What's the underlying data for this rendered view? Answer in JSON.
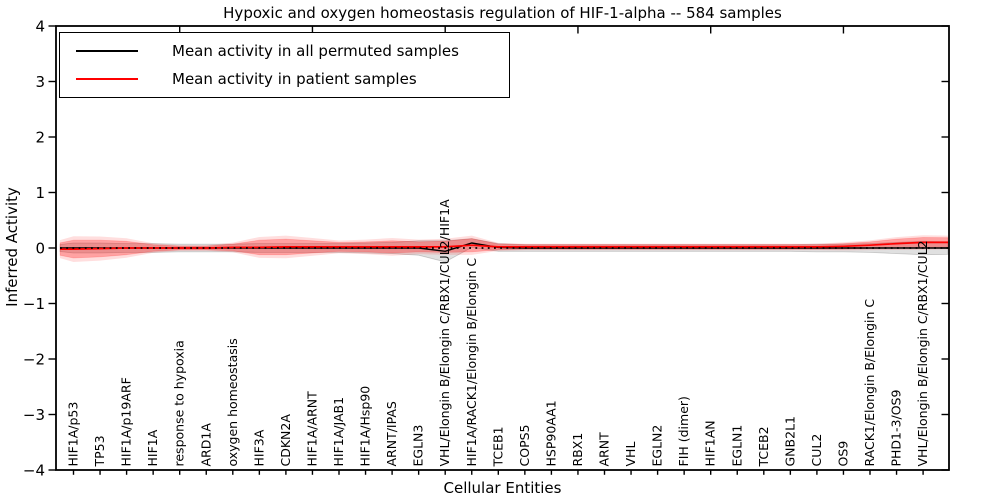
{
  "figure": {
    "title": "Hypoxic and oxygen homeostasis regulation of HIF-1-alpha -- 584 samples",
    "xlabel": "Cellular Entities",
    "ylabel": "Inferred Activity",
    "legend": [
      {
        "label": "Mean activity in all permuted samples",
        "color": "#000000"
      },
      {
        "label": "Mean activity in patient samples",
        "color": "#ff0000"
      }
    ]
  },
  "chart_data": {
    "type": "line",
    "title": "Hypoxic and oxygen homeostasis regulation of HIF-1-alpha -- 584 samples",
    "xlabel": "Cellular Entities",
    "ylabel": "Inferred Activity",
    "ylim": [
      -4,
      4
    ],
    "yticklabels": [
      "4",
      "3",
      "2",
      "1",
      "0",
      "−1",
      "−2",
      "−3",
      "−4"
    ],
    "yticks": [
      4,
      3,
      2,
      1,
      0,
      -1,
      -2,
      -3,
      -4
    ],
    "grid": false,
    "legend_position": "upper left",
    "zero_reference_line": {
      "y": 0,
      "style": "dotted",
      "color": "#000000"
    },
    "colors": {
      "permuted": "#000000",
      "patient": "#ff0000",
      "patient_band": "rgba(255,0,0,0.27)",
      "permuted_band": "rgba(0,0,0,0.12)"
    },
    "categories": [
      "HIF1A/p53",
      "TP53",
      "HIF1A/p19ARF",
      "HIF1A",
      "response to hypoxia",
      "ARD1A",
      "oxygen homeostasis",
      "HIF3A",
      "CDKN2A",
      "HIF1A/ARNT",
      "HIF1A/JAB1",
      "HIF1A/Hsp90",
      "ARNT/IPAS",
      "EGLN3",
      "VHL/Elongin B/Elongin C/RBX1/CUL2/HIF1A",
      "HIF1A/RACK1/Elongin B/Elongin C",
      "TCEB1",
      "COPS5",
      "HSP90AA1",
      "RBX1",
      "ARNT",
      "VHL",
      "EGLN2",
      "FIH (dimer)",
      "HIF1AN",
      "EGLN1",
      "TCEB2",
      "GNB2L1",
      "CUL2",
      "OS9",
      "RACK1/Elongin B/Elongin C",
      "PHD1-3/OS9",
      "VHL/Elongin B/Elongin C/RBX1/CUL2"
    ],
    "series": [
      {
        "name": "Mean activity in all permuted samples",
        "color": "#000000",
        "values": [
          0,
          0,
          0,
          0,
          0,
          0,
          0,
          0,
          0,
          0,
          0,
          0,
          0,
          0,
          -0.06,
          0.09,
          0.01,
          0,
          0,
          0,
          0,
          0,
          0,
          0,
          0,
          0,
          0,
          0,
          0,
          0,
          0,
          0,
          0
        ]
      },
      {
        "name": "Mean activity in patient samples",
        "color": "#ff0000",
        "values": [
          -0.02,
          -0.01,
          0,
          0,
          0,
          0,
          0.01,
          0.01,
          0.02,
          0.02,
          0.02,
          0.02,
          0.02,
          0.02,
          0.02,
          0.05,
          0.02,
          0.02,
          0.02,
          0.02,
          0.02,
          0.02,
          0.02,
          0.02,
          0.02,
          0.02,
          0.02,
          0.02,
          0.02,
          0.03,
          0.05,
          0.08,
          0.1
        ]
      }
    ],
    "bands": [
      {
        "name": "permuted-spread-halfwidth",
        "color": "rgba(0,0,0,0.12)",
        "halfwidths": [
          0.09,
          0.09,
          0.08,
          0.08,
          0.07,
          0.07,
          0.07,
          0.08,
          0.08,
          0.08,
          0.08,
          0.09,
          0.1,
          0.13,
          0.19,
          0.08,
          0.07,
          0.06,
          0.06,
          0.06,
          0.06,
          0.06,
          0.06,
          0.06,
          0.06,
          0.06,
          0.06,
          0.06,
          0.07,
          0.07,
          0.08,
          0.1,
          0.12
        ]
      },
      {
        "name": "patient-spread-halfwidth",
        "color": "rgba(255,0,0,0.27)",
        "halfwidths": [
          0.16,
          0.15,
          0.12,
          0.06,
          0.035,
          0.035,
          0.06,
          0.13,
          0.14,
          0.11,
          0.08,
          0.09,
          0.11,
          0.09,
          0.1,
          0.12,
          0.05,
          0.04,
          0.04,
          0.04,
          0.04,
          0.04,
          0.04,
          0.04,
          0.04,
          0.04,
          0.04,
          0.04,
          0.04,
          0.05,
          0.06,
          0.08,
          0.09
        ]
      }
    ],
    "top_axis_tick_positions": [
      5,
      10,
      15,
      20,
      25,
      30
    ]
  }
}
